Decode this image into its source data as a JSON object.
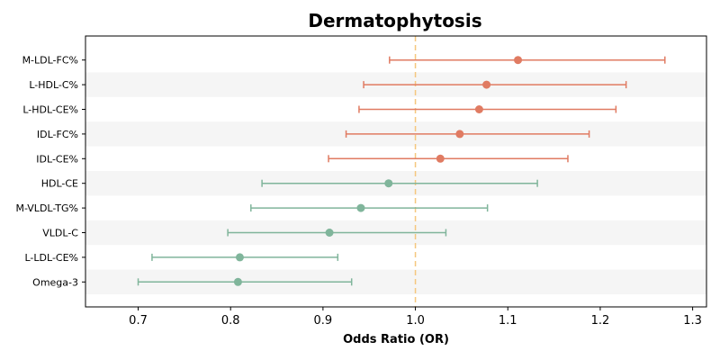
{
  "chart_data": {
    "type": "scatter",
    "subtype": "forest-plot",
    "title": "Dermatophytosis",
    "xlabel": "Odds Ratio (OR)",
    "ylabel": "",
    "xlim": [
      0.643,
      1.315
    ],
    "xticks": [
      0.7,
      0.8,
      0.9,
      1.0,
      1.1,
      1.2,
      1.3
    ],
    "xtick_labels": [
      "0.7",
      "0.8",
      "0.9",
      "1.0",
      "1.1",
      "1.2",
      "1.3"
    ],
    "reference_line": 1.0,
    "grid": false,
    "row_banding": true,
    "categories": [
      "M-LDL-FC%",
      "L-HDL-C%",
      "L-HDL-CE%",
      "IDL-FC%",
      "IDL-CE%",
      "HDL-CE",
      "M-VLDL-TG%",
      "VLDL-C",
      "L-LDL-CE%",
      "Omega-3"
    ],
    "or": [
      1.111,
      1.077,
      1.069,
      1.048,
      1.027,
      0.971,
      0.941,
      0.907,
      0.81,
      0.808
    ],
    "ci_lower": [
      0.972,
      0.944,
      0.939,
      0.925,
      0.906,
      0.834,
      0.822,
      0.797,
      0.715,
      0.7
    ],
    "ci_upper": [
      1.27,
      1.228,
      1.217,
      1.188,
      1.165,
      1.132,
      1.078,
      1.033,
      0.916,
      0.931
    ],
    "colors": {
      "risk": "#e07b62",
      "protective": "#80b59b",
      "reference": "#f5c77e",
      "band": "#f5f5f5"
    }
  }
}
